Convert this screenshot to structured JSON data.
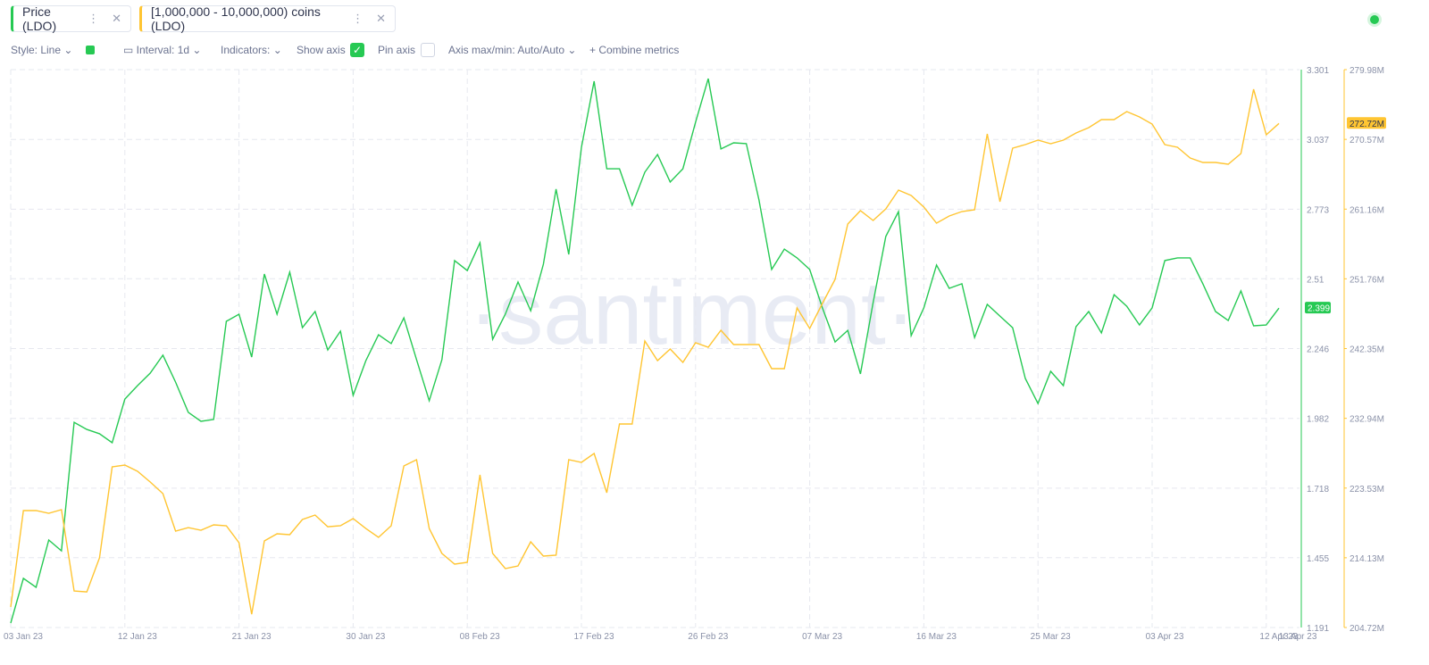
{
  "tabs": [
    "Price (LDO)",
    "[1,000,000 - 10,000,000) coins (LDO)"
  ],
  "toolbar": {
    "style": "Style: Line",
    "interval": "Interval: 1d",
    "indicators": "Indicators:",
    "show_axis": "Show axis",
    "pin_axis": "Pin axis",
    "axis_range": "Axis max/min: Auto/Auto",
    "combine": "Combine metrics"
  },
  "watermark": "·santiment·",
  "chart_data": {
    "type": "line",
    "categories": [
      "03 Jan 23",
      null,
      null,
      null,
      null,
      null,
      null,
      null,
      null,
      "12 Jan 23",
      null,
      null,
      null,
      null,
      null,
      null,
      null,
      null,
      "21 Jan 23",
      null,
      null,
      null,
      null,
      null,
      null,
      null,
      null,
      "30 Jan 23",
      null,
      null,
      null,
      null,
      null,
      null,
      null,
      null,
      "08 Feb 23",
      null,
      null,
      null,
      null,
      null,
      null,
      null,
      null,
      "17 Feb 23",
      null,
      null,
      null,
      null,
      null,
      null,
      null,
      null,
      "26 Feb 23",
      null,
      null,
      null,
      null,
      null,
      null,
      null,
      null,
      "07 Mar 23",
      null,
      null,
      null,
      null,
      null,
      null,
      null,
      null,
      "16 Mar 23",
      null,
      null,
      null,
      null,
      null,
      null,
      null,
      null,
      "25 Mar 23",
      null,
      null,
      null,
      null,
      null,
      null,
      null,
      null,
      "03 Apr 23",
      null,
      null,
      null,
      null,
      null,
      null,
      null,
      null,
      "12 Apr 23",
      "13 Apr 23"
    ],
    "series": [
      {
        "name": "Price (LDO)",
        "color": "#26c953",
        "axis": "y",
        "values": [
          1.208,
          1.377,
          1.343,
          1.522,
          1.481,
          1.967,
          1.94,
          1.924,
          1.89,
          2.055,
          2.106,
          2.153,
          2.221,
          2.119,
          2.005,
          1.971,
          1.978,
          2.349,
          2.376,
          2.214,
          2.528,
          2.376,
          2.535,
          2.325,
          2.386,
          2.241,
          2.312,
          2.069,
          2.2,
          2.298,
          2.265,
          2.362,
          2.204,
          2.049,
          2.204,
          2.579,
          2.541,
          2.646,
          2.281,
          2.376,
          2.498,
          2.389,
          2.565,
          2.849,
          2.602,
          3.007,
          3.257,
          2.926,
          2.926,
          2.788,
          2.913,
          2.98,
          2.876,
          2.926,
          3.102,
          3.267,
          3.001,
          3.024,
          3.021,
          2.808,
          2.545,
          2.622,
          2.589,
          2.545,
          2.4,
          2.271,
          2.315,
          2.15,
          2.42,
          2.67,
          2.764,
          2.295,
          2.4,
          2.562,
          2.474,
          2.491,
          2.288,
          2.413,
          2.369,
          2.325,
          2.133,
          2.038,
          2.16,
          2.106,
          2.329,
          2.386,
          2.305,
          2.45,
          2.406,
          2.335,
          2.4,
          2.579,
          2.589,
          2.589,
          2.491,
          2.386,
          2.352,
          2.464,
          2.332,
          2.335,
          2.399
        ]
      },
      {
        "name": "[1,000,000 - 10,000,000) coins (LDO)",
        "color": "#ffc532",
        "axis": "y2",
        "values": [
          207490000,
          220490000,
          220490000,
          220130000,
          220610000,
          209650000,
          209530000,
          214110000,
          226390000,
          226630000,
          225790000,
          224350000,
          222780000,
          217720000,
          218200000,
          217840000,
          218570000,
          218450000,
          216160000,
          206520000,
          216400000,
          217360000,
          217240000,
          219290000,
          219890000,
          218320000,
          218450000,
          219410000,
          218080000,
          216880000,
          218450000,
          226510000,
          227360000,
          218080000,
          214710000,
          213270000,
          213510000,
          225310000,
          214710000,
          212670000,
          213030000,
          216280000,
          214350000,
          214470000,
          227360000,
          227000000,
          228200000,
          222900000,
          232170000,
          232170000,
          243370000,
          240720000,
          242290000,
          240480000,
          243130000,
          242530000,
          244820000,
          242890000,
          242890000,
          242890000,
          239640000,
          239640000,
          247830000,
          245060000,
          248430000,
          251680000,
          259150000,
          260950000,
          259630000,
          261190000,
          263720000,
          263000000,
          261440000,
          259270000,
          260230000,
          260830000,
          261070000,
          271310000,
          262160000,
          269380000,
          269860000,
          270470000,
          269990000,
          270470000,
          271430000,
          272150000,
          273240000,
          273240000,
          274320000,
          273600000,
          272630000,
          269860000,
          269500000,
          268060000,
          267460000,
          267460000,
          267220000,
          268660000,
          277330000,
          271190000,
          272720000
        ],
        "value_labels": [
          null,
          null,
          null,
          null,
          null,
          null,
          null,
          null,
          null,
          null,
          null,
          null,
          null,
          null,
          null,
          null,
          null,
          null,
          null,
          null,
          null,
          null,
          null,
          null,
          null,
          null,
          null,
          null,
          null,
          null,
          null,
          null,
          null,
          null,
          null,
          null,
          null,
          null,
          null,
          null,
          null,
          null,
          null,
          null,
          null,
          null,
          null,
          null,
          null,
          null,
          null,
          null,
          null,
          null,
          null,
          null,
          null,
          null,
          null,
          null,
          null,
          null,
          null,
          null,
          null,
          null,
          null,
          null,
          null,
          null,
          null,
          null,
          null,
          null,
          null,
          null,
          null,
          null,
          null,
          null,
          null,
          null,
          null,
          null,
          null,
          null,
          null,
          null,
          null,
          null,
          null,
          null,
          null,
          null,
          null,
          null,
          null,
          null,
          null,
          null,
          "272.72M"
        ]
      }
    ],
    "ylim": [
      1.191,
      3.301
    ],
    "yticks": [
      1.191,
      1.455,
      1.718,
      1.982,
      2.246,
      2.51,
      2.773,
      3.037,
      3.301
    ],
    "y2lim": [
      204720000,
      279980000
    ],
    "y2ticks": [
      {
        "value": 204720000,
        "label": "204.72M"
      },
      {
        "value": 214130000,
        "label": "214.13M"
      },
      {
        "value": 223530000,
        "label": "223.53M"
      },
      {
        "value": 232940000,
        "label": "232.94M"
      },
      {
        "value": 242350000,
        "label": "242.35M"
      },
      {
        "value": 251760000,
        "label": "251.76M"
      },
      {
        "value": 261160000,
        "label": "261.16M"
      },
      {
        "value": 270570000,
        "label": "270.57M"
      },
      {
        "value": 279980000,
        "label": "279.98M"
      }
    ],
    "grid": true
  }
}
